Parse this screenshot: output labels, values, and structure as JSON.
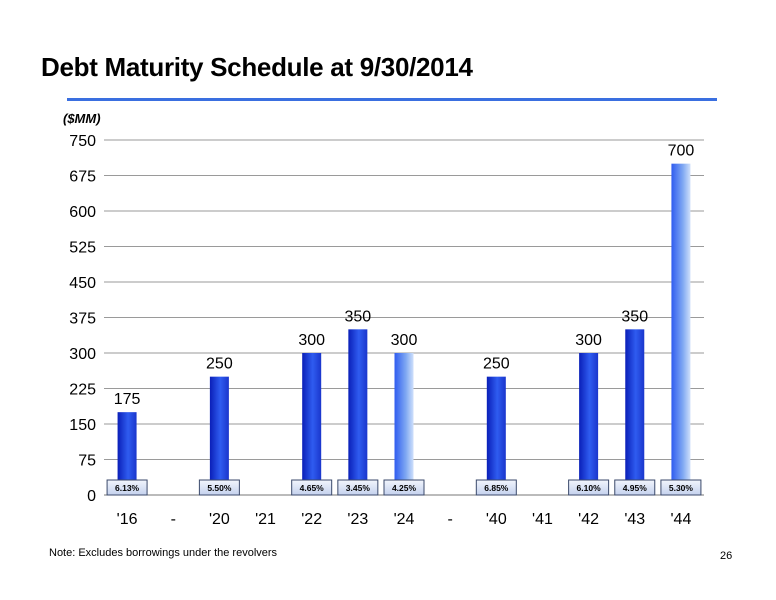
{
  "title": "Debt Maturity Schedule at 9/30/2014",
  "unit_label": "($MM)",
  "footnote": "Note: Excludes borrowings under the revolvers",
  "page_number": "26",
  "colors": {
    "accent_rule": "#3a6fe0",
    "bar_dark": "#0a1fb8",
    "bar_mid": "#2f5cf0",
    "bar_light_top": "#cfe0fb",
    "bar_light_mid": "#7fa8f2",
    "rate_box_fill": "#dbe4f6",
    "rate_box_stroke": "#3b4a6b",
    "grid": "#9a9a9a"
  },
  "chart_data": {
    "type": "bar",
    "ylim": [
      0,
      750
    ],
    "yticks": [
      0,
      75,
      150,
      225,
      300,
      375,
      450,
      525,
      600,
      675,
      750
    ],
    "grid": true,
    "categories": [
      "'16",
      "-",
      "'20",
      "'21",
      "'22",
      "'23",
      "'24",
      "-",
      "'40",
      "'41",
      "'42",
      "'43",
      "'44"
    ],
    "values": [
      175,
      null,
      250,
      null,
      300,
      350,
      300,
      null,
      250,
      null,
      300,
      350,
      700
    ],
    "rates": [
      "6.13%",
      null,
      "5.50%",
      null,
      "4.65%",
      "3.45%",
      "4.25%",
      null,
      "6.85%",
      null,
      "6.10%",
      "4.95%",
      "5.30%"
    ],
    "bar_styles": [
      "dark",
      null,
      "dark",
      null,
      "dark",
      "dark",
      "light",
      null,
      "dark",
      null,
      "dark",
      "dark",
      "light"
    ]
  }
}
